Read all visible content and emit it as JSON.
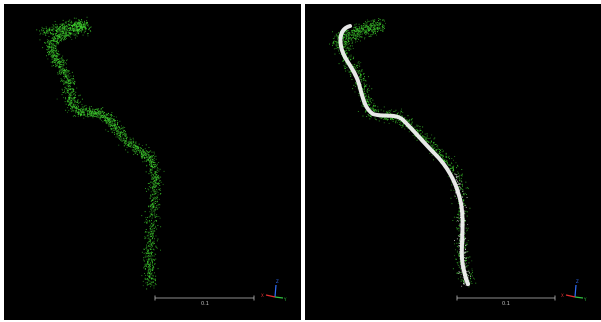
{
  "panels": [
    {
      "id": "left",
      "scale_bar_label": "0.1",
      "axis_labels": {
        "z": "Z",
        "x": "X",
        "y": "Y"
      }
    },
    {
      "id": "right",
      "scale_bar_label": "0.1",
      "axis_labels": {
        "z": "Z",
        "x": "X",
        "y": "Y"
      }
    }
  ],
  "colors": {
    "background": "#000000",
    "divider": "#ffffff",
    "point_cloud": "#3ecf2e",
    "centerline": "#f2f2f2",
    "axis_x": "#e03030",
    "axis_y": "#30c040",
    "axis_z": "#3070ff"
  }
}
